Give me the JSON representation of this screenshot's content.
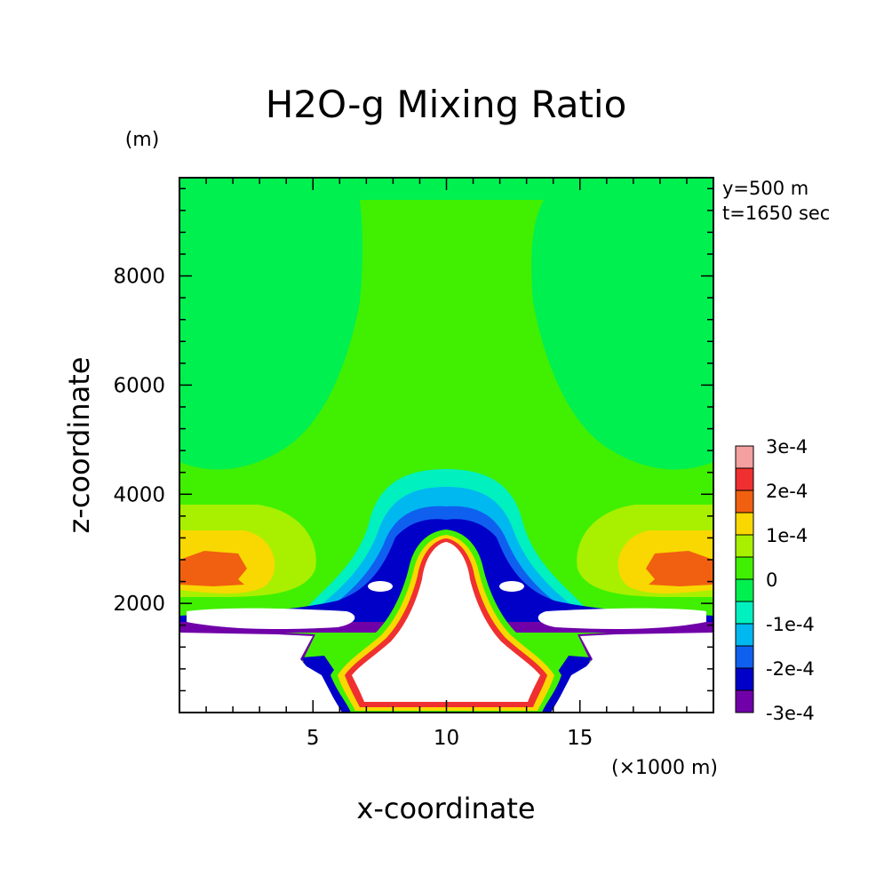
{
  "chart_data": {
    "type": "heatmap",
    "title": "H2O-g Mixing Ratio",
    "xlabel": "x-coordinate",
    "ylabel": "z-coordinate",
    "x_unit": "(×1000 m)",
    "y_unit": "(m)",
    "annotations": [
      "y=500 m",
      "t=1650 sec"
    ],
    "xlim": [
      0,
      20
    ],
    "ylim": [
      0,
      9800
    ],
    "x_ticks": [
      5,
      10,
      15
    ],
    "y_ticks": [
      2000,
      4000,
      6000,
      8000
    ],
    "colorbar": {
      "labels": [
        "3e-4",
        "2e-4",
        "1e-4",
        "0",
        "-1e-4",
        "-2e-4",
        "-3e-4"
      ],
      "levels": [
        0.0003,
        0.00025,
        0.0002,
        0.00015,
        0.0001,
        5e-05,
        0.0,
        -5e-05,
        -0.0001,
        -0.00015,
        -0.0002,
        -0.00025
      ],
      "colors": [
        "#f4a0a0",
        "#f03030",
        "#f06010",
        "#f8d800",
        "#a8f000",
        "#40f000",
        "#00f050",
        "#00f0c0",
        "#00b8f0",
        "#1060f0",
        "#0000c8",
        "#7000a8"
      ]
    },
    "grid": false
  }
}
